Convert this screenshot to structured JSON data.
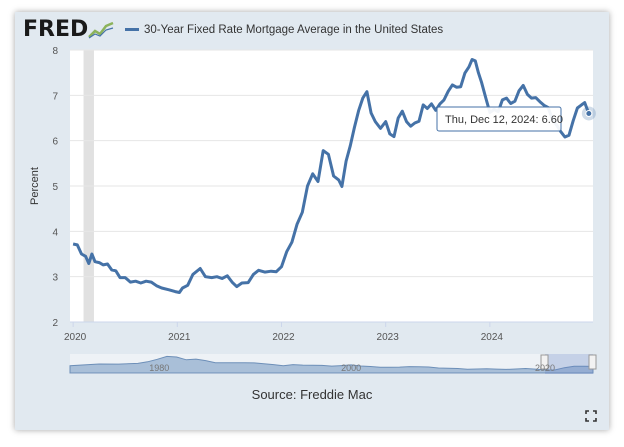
{
  "header": {
    "logo_text": "FRED",
    "logo_icon": "chart-line-icon"
  },
  "chart_data": {
    "type": "line",
    "title": "",
    "xlabel": "",
    "ylabel": "Percent",
    "ylim": [
      2,
      8
    ],
    "xlim": [
      2019.97,
      2024.99
    ],
    "yticks": [
      2,
      3,
      4,
      5,
      6,
      7,
      8
    ],
    "xticks": [
      {
        "label": "2020",
        "value": 2020.0
      },
      {
        "label": "2021",
        "value": 2021.0
      },
      {
        "label": "2022",
        "value": 2022.0
      },
      {
        "label": "2023",
        "value": 2023.0
      },
      {
        "label": "2024",
        "value": 2024.0
      }
    ],
    "recession_shading": [
      2020.1,
      2020.2
    ],
    "grid": "horizontal",
    "legend_position": "top",
    "series": [
      {
        "name": "30-Year Fixed Rate Mortgage Average in the United States",
        "color": "#4572a7",
        "points": [
          [
            2020.0,
            3.72
          ],
          [
            2020.04,
            3.7
          ],
          [
            2020.08,
            3.5
          ],
          [
            2020.12,
            3.45
          ],
          [
            2020.15,
            3.29
          ],
          [
            2020.18,
            3.5
          ],
          [
            2020.21,
            3.33
          ],
          [
            2020.25,
            3.31
          ],
          [
            2020.29,
            3.26
          ],
          [
            2020.33,
            3.28
          ],
          [
            2020.37,
            3.15
          ],
          [
            2020.41,
            3.13
          ],
          [
            2020.45,
            2.98
          ],
          [
            2020.5,
            2.98
          ],
          [
            2020.55,
            2.88
          ],
          [
            2020.6,
            2.9
          ],
          [
            2020.65,
            2.86
          ],
          [
            2020.7,
            2.9
          ],
          [
            2020.75,
            2.88
          ],
          [
            2020.8,
            2.8
          ],
          [
            2020.85,
            2.75
          ],
          [
            2020.92,
            2.71
          ],
          [
            2020.98,
            2.67
          ],
          [
            2021.02,
            2.65
          ],
          [
            2021.05,
            2.75
          ],
          [
            2021.1,
            2.81
          ],
          [
            2021.15,
            3.05
          ],
          [
            2021.22,
            3.18
          ],
          [
            2021.27,
            3.0
          ],
          [
            2021.33,
            2.98
          ],
          [
            2021.38,
            3.0
          ],
          [
            2021.43,
            2.96
          ],
          [
            2021.48,
            3.02
          ],
          [
            2021.53,
            2.87
          ],
          [
            2021.57,
            2.78
          ],
          [
            2021.62,
            2.86
          ],
          [
            2021.68,
            2.87
          ],
          [
            2021.73,
            3.05
          ],
          [
            2021.78,
            3.14
          ],
          [
            2021.84,
            3.1
          ],
          [
            2021.9,
            3.12
          ],
          [
            2021.95,
            3.11
          ],
          [
            2022.0,
            3.22
          ],
          [
            2022.05,
            3.55
          ],
          [
            2022.1,
            3.76
          ],
          [
            2022.15,
            4.16
          ],
          [
            2022.2,
            4.42
          ],
          [
            2022.25,
            5.0
          ],
          [
            2022.3,
            5.27
          ],
          [
            2022.35,
            5.1
          ],
          [
            2022.4,
            5.78
          ],
          [
            2022.45,
            5.7
          ],
          [
            2022.5,
            5.22
          ],
          [
            2022.55,
            5.13
          ],
          [
            2022.58,
            4.99
          ],
          [
            2022.62,
            5.55
          ],
          [
            2022.66,
            5.89
          ],
          [
            2022.7,
            6.29
          ],
          [
            2022.74,
            6.66
          ],
          [
            2022.78,
            6.94
          ],
          [
            2022.82,
            7.08
          ],
          [
            2022.86,
            6.61
          ],
          [
            2022.9,
            6.42
          ],
          [
            2022.95,
            6.27
          ],
          [
            2023.0,
            6.42
          ],
          [
            2023.04,
            6.15
          ],
          [
            2023.08,
            6.09
          ],
          [
            2023.12,
            6.5
          ],
          [
            2023.16,
            6.65
          ],
          [
            2023.2,
            6.42
          ],
          [
            2023.24,
            6.32
          ],
          [
            2023.28,
            6.39
          ],
          [
            2023.32,
            6.43
          ],
          [
            2023.36,
            6.79
          ],
          [
            2023.4,
            6.71
          ],
          [
            2023.44,
            6.81
          ],
          [
            2023.48,
            6.67
          ],
          [
            2023.52,
            6.81
          ],
          [
            2023.56,
            6.9
          ],
          [
            2023.6,
            7.09
          ],
          [
            2023.64,
            7.23
          ],
          [
            2023.68,
            7.18
          ],
          [
            2023.72,
            7.19
          ],
          [
            2023.76,
            7.49
          ],
          [
            2023.8,
            7.63
          ],
          [
            2023.83,
            7.79
          ],
          [
            2023.86,
            7.76
          ],
          [
            2023.89,
            7.5
          ],
          [
            2023.92,
            7.29
          ],
          [
            2023.96,
            6.95
          ],
          [
            2024.0,
            6.62
          ],
          [
            2024.04,
            6.69
          ],
          [
            2024.08,
            6.64
          ],
          [
            2024.12,
            6.9
          ],
          [
            2024.16,
            6.94
          ],
          [
            2024.2,
            6.82
          ],
          [
            2024.24,
            6.87
          ],
          [
            2024.28,
            7.1
          ],
          [
            2024.32,
            7.22
          ],
          [
            2024.36,
            7.02
          ],
          [
            2024.4,
            6.94
          ],
          [
            2024.44,
            6.95
          ],
          [
            2024.48,
            6.86
          ],
          [
            2024.52,
            6.78
          ],
          [
            2024.56,
            6.73
          ],
          [
            2024.6,
            6.47
          ],
          [
            2024.64,
            6.35
          ],
          [
            2024.68,
            6.2
          ],
          [
            2024.72,
            6.08
          ],
          [
            2024.76,
            6.12
          ],
          [
            2024.8,
            6.44
          ],
          [
            2024.84,
            6.72
          ],
          [
            2024.88,
            6.79
          ],
          [
            2024.91,
            6.84
          ],
          [
            2024.95,
            6.6
          ]
        ]
      }
    ],
    "tooltip": {
      "label": "Thu, Dec 12, 2024:",
      "value": "6.60",
      "x": 2024.95,
      "y": 6.6
    },
    "navigator": {
      "label_left": "1980",
      "label_mid": "2000",
      "label_right": "2020",
      "history": [
        [
          1971,
          7.3
        ],
        [
          1974,
          9.0
        ],
        [
          1976,
          8.9
        ],
        [
          1978,
          9.6
        ],
        [
          1979,
          11.2
        ],
        [
          1980,
          13.7
        ],
        [
          1981,
          16.6
        ],
        [
          1982,
          16.0
        ],
        [
          1983,
          13.2
        ],
        [
          1984,
          13.9
        ],
        [
          1985,
          12.4
        ],
        [
          1986,
          10.2
        ],
        [
          1987,
          10.2
        ],
        [
          1988,
          10.3
        ],
        [
          1989,
          10.3
        ],
        [
          1990,
          10.1
        ],
        [
          1991,
          9.3
        ],
        [
          1992,
          8.4
        ],
        [
          1993,
          7.3
        ],
        [
          1994,
          8.4
        ],
        [
          1995,
          7.9
        ],
        [
          1996,
          7.8
        ],
        [
          1997,
          7.6
        ],
        [
          1998,
          6.9
        ],
        [
          1999,
          7.4
        ],
        [
          2000,
          8.1
        ],
        [
          2001,
          7.0
        ],
        [
          2002,
          6.5
        ],
        [
          2003,
          5.8
        ],
        [
          2004,
          5.8
        ],
        [
          2005,
          5.9
        ],
        [
          2006,
          6.4
        ],
        [
          2007,
          6.3
        ],
        [
          2008,
          6.0
        ],
        [
          2009,
          5.0
        ],
        [
          2010,
          4.7
        ],
        [
          2011,
          4.5
        ],
        [
          2012,
          3.7
        ],
        [
          2013,
          4.0
        ],
        [
          2014,
          4.2
        ],
        [
          2015,
          3.9
        ],
        [
          2016,
          3.6
        ],
        [
          2017,
          4.0
        ],
        [
          2018,
          4.5
        ],
        [
          2019,
          3.9
        ],
        [
          2020,
          3.1
        ],
        [
          2021,
          3.0
        ],
        [
          2022,
          5.3
        ],
        [
          2023,
          6.8
        ],
        [
          2024,
          6.7
        ],
        [
          2024.95,
          6.6
        ]
      ],
      "selected_range": [
        2020.0,
        2024.95
      ]
    }
  },
  "source": {
    "text": "Source: Freddie Mac"
  },
  "controls": {
    "expand_icon": "fullscreen-icon"
  }
}
